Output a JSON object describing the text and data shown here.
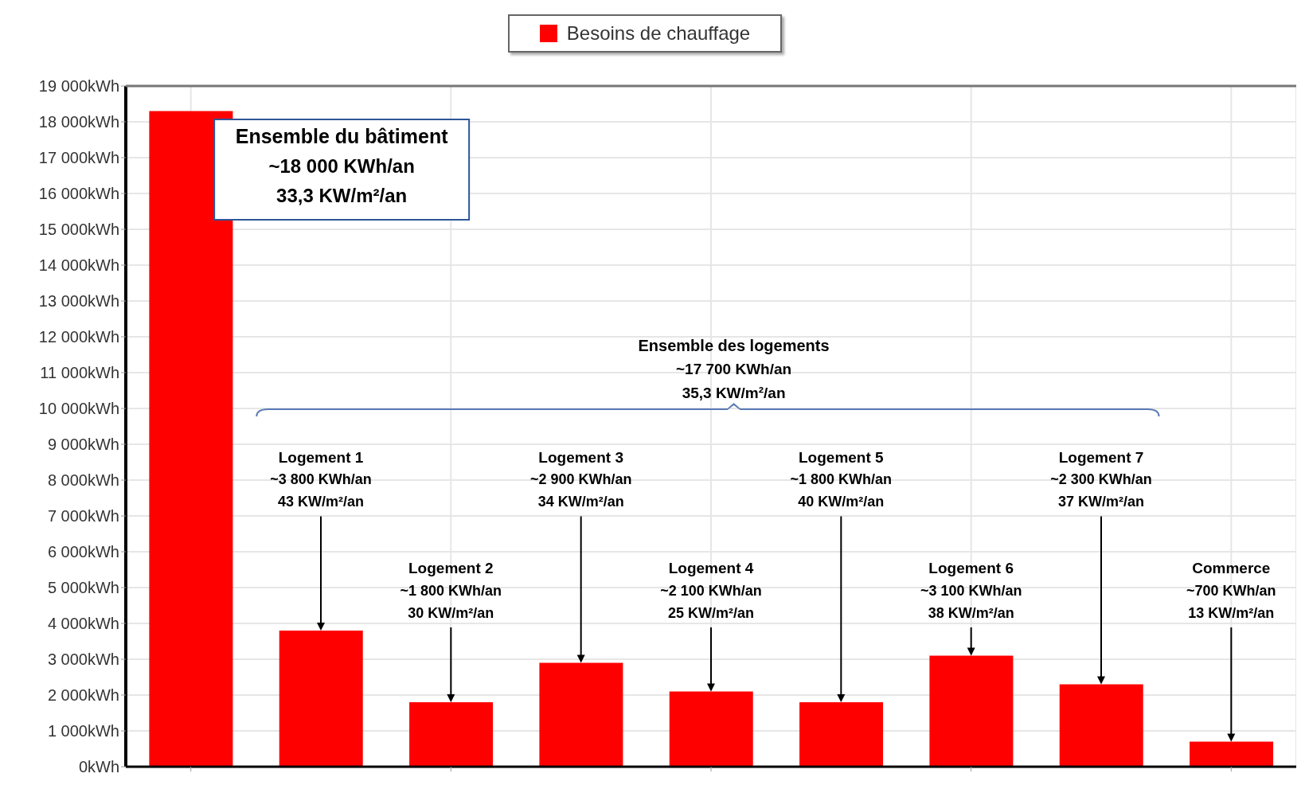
{
  "chart_data": {
    "type": "bar",
    "categories": [
      null,
      null,
      null,
      null,
      null,
      null,
      null,
      null,
      null
    ],
    "series": [
      {
        "name": "Besoins de chauffage",
        "color": "#ff0000",
        "values": [
          18300,
          3800,
          1800,
          2900,
          2100,
          1800,
          3100,
          2300,
          700
        ]
      }
    ],
    "ylim": [
      0,
      19000
    ],
    "yticks": [
      {
        "value": 0,
        "label": "0kWh"
      },
      {
        "value": 1000,
        "label": "1 000kWh"
      },
      {
        "value": 2000,
        "label": "2 000kWh"
      },
      {
        "value": 3000,
        "label": "3 000kWh"
      },
      {
        "value": 4000,
        "label": "4 000kWh"
      },
      {
        "value": 5000,
        "label": "5 000kWh"
      },
      {
        "value": 6000,
        "label": "6 000kWh"
      },
      {
        "value": 7000,
        "label": "7 000kWh"
      },
      {
        "value": 8000,
        "label": "8 000kWh"
      },
      {
        "value": 9000,
        "label": "9 000kWh"
      },
      {
        "value": 10000,
        "label": "10 000kWh"
      },
      {
        "value": 11000,
        "label": "11 000kWh"
      },
      {
        "value": 12000,
        "label": "12 000kWh"
      },
      {
        "value": 13000,
        "label": "13 000kWh"
      },
      {
        "value": 14000,
        "label": "14 000kWh"
      },
      {
        "value": 15000,
        "label": "15 000kWh"
      },
      {
        "value": 16000,
        "label": "16 000kWh"
      },
      {
        "value": 17000,
        "label": "17 000kWh"
      },
      {
        "value": 18000,
        "label": "18 000kWh"
      },
      {
        "value": 19000,
        "label": "19 000kWh"
      }
    ],
    "grid": true,
    "legend": "top",
    "annotations": [
      "Ensemble du bâtiment\n~18 000 KWh/an\n33,3 KW/m²/an",
      "Ensemble des logements\n~17 700 KWh/an\n35,3 KW/m²/an",
      "Logement 1\n~3 800 KWh/an\n43 KW/m²/an",
      "Logement 2\n~1 800 KWh/an\n30 KW/m²/an",
      "Logement 3\n~2 900 KWh/an\n34 KW/m²/an",
      "Logement 4\n~2 100 KWh/an\n25 KW/m²/an",
      "Logement 5\n~1 800 KWh/an\n40 KW/m²/an",
      "Logement 6\n~3 100 KWh/an\n38 KW/m²/an",
      "Logement 7\n~2 300 KWh/an\n37 KW/m²/an",
      "Commerce\n~700 KWh/an\n13 KW/m²/an"
    ]
  }
}
